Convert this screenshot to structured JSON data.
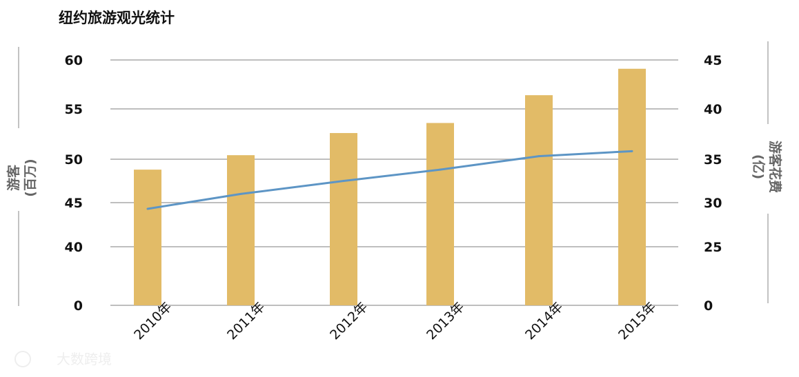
{
  "chart_data": {
    "type": "bar",
    "title": "纽约旅游观光统计",
    "categories": [
      "2010年",
      "2011年",
      "2012年",
      "2013年",
      "2014年",
      "2015年"
    ],
    "series": [
      {
        "type": "bar",
        "axis": "left",
        "values": [
          48.8,
          50.4,
          52.6,
          53.6,
          56.4,
          59.1
        ],
        "color": "#e2bb67"
      },
      {
        "type": "line",
        "axis": "right",
        "values": [
          29.3,
          31.0,
          32.5,
          33.8,
          35.3,
          35.8
        ],
        "color": "#5d95c5"
      }
    ],
    "left_axis": {
      "title": "游客 (百万)",
      "title_lines": [
        "游客",
        "(百万)"
      ],
      "ticks": [
        "0",
        "40",
        "45",
        "50",
        "55",
        "60"
      ],
      "tick_values": [
        0,
        40,
        45,
        50,
        55,
        60
      ],
      "scale": "broken (0, then 40–60)"
    },
    "right_axis": {
      "title": "游客花费 (亿)",
      "title_lines": [
        "游客花费",
        "(亿)"
      ],
      "ticks": [
        "0",
        "25",
        "30",
        "35",
        "40",
        "45"
      ],
      "tick_values": [
        0,
        25,
        30,
        35,
        40,
        45
      ],
      "scale": "broken (0, then 25–45)"
    },
    "grid": true,
    "legend": "none"
  },
  "watermark": "大数跨境"
}
